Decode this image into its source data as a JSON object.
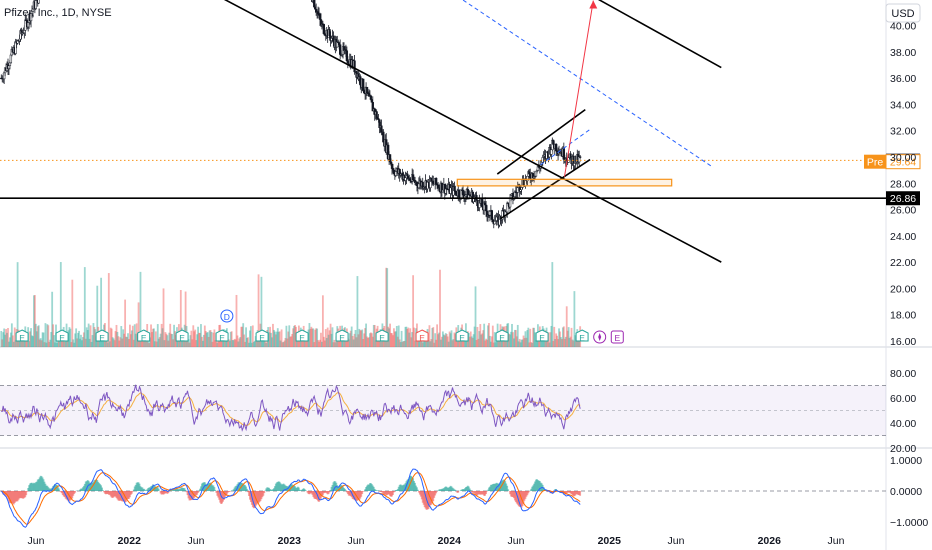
{
  "header": {
    "title": "Pfizer, Inc., 1D, NYSE",
    "currency": "USD"
  },
  "colors": {
    "up": "#26a69a",
    "down": "#ef5350",
    "candle": "#131722",
    "rsi": "#7e57c2",
    "rsi_ma": "#f5b041",
    "macd": "#2962ff",
    "signal": "#ff6d00",
    "accent": "#f7931a",
    "dashed_blue": "#2962ff",
    "arrow": "#f23645"
  },
  "chart_data": {
    "type": "line",
    "price_axis": {
      "min": 16,
      "max": 40,
      "ticks": [
        16,
        18,
        20,
        22,
        24,
        26,
        28,
        30,
        32,
        34,
        36,
        38,
        40
      ],
      "tick_labels": [
        "16.00",
        "18.00",
        "20.00",
        "22.00",
        "24.00",
        "26.00",
        "28.00",
        "30.00",
        "32.00",
        "34.00",
        "36.00",
        "38.00",
        "40.00"
      ]
    },
    "time_axis": {
      "labels": [
        "Jun",
        "2022",
        "Jun",
        "2023",
        "Jun",
        "2024",
        "Jun",
        "2025",
        "Jun",
        "2026",
        "Jun"
      ],
      "years": [
        2021.417,
        2022.0,
        2022.417,
        2023.0,
        2023.417,
        2024.0,
        2024.417,
        2025.0,
        2025.417,
        2026.0,
        2026.417
      ]
    },
    "price_series": {
      "name": "",
      "t": [
        2021.2,
        2021.35,
        2021.5,
        2021.7,
        2021.85,
        2022.0,
        2022.2,
        2022.45,
        2022.7,
        2022.95,
        2023.05,
        2023.2,
        2023.4,
        2023.55,
        2023.65,
        2023.8,
        2023.9,
        2024.0,
        2024.15,
        2024.3,
        2024.45,
        2024.55,
        2024.65,
        2024.75,
        2024.82
      ],
      "v": [
        36,
        40,
        44,
        50,
        58,
        55,
        52,
        50,
        45,
        50,
        46,
        40,
        37,
        33,
        29,
        28,
        28,
        27.5,
        27,
        25,
        28,
        29,
        31,
        29.8,
        29.74
      ]
    },
    "levels": [
      {
        "price": 29.74,
        "label": "29.74",
        "style": "dotted"
      },
      {
        "price": 29.64,
        "label": "29.64",
        "tag": "Pre"
      },
      {
        "price": 26.86,
        "label": "26.86",
        "style": "solid"
      }
    ],
    "trendlines": [
      {
        "style": "solid",
        "points": [
          [
            2021.35,
            50
          ],
          [
            2025.7,
            22.0
          ]
        ]
      },
      {
        "style": "solid",
        "points": [
          [
            2023.45,
            52.0
          ],
          [
            2025.7,
            36.8
          ]
        ]
      },
      {
        "style": "dashed",
        "points": [
          [
            2022.85,
            52.0
          ],
          [
            2025.65,
            29.2
          ]
        ]
      },
      {
        "style": "solid",
        "points": [
          [
            2024.3,
            28.7
          ],
          [
            2024.85,
            33.6
          ]
        ]
      },
      {
        "style": "solid",
        "points": [
          [
            2024.32,
            25.3
          ],
          [
            2024.88,
            29.8
          ]
        ]
      },
      {
        "style": "dashed",
        "points": [
          [
            2024.57,
            29.4
          ],
          [
            2024.88,
            32.1
          ]
        ]
      }
    ],
    "arrow": {
      "from": [
        2024.72,
        28.5
      ],
      "to": [
        2024.9,
        41.9
      ]
    },
    "zone": {
      "t0": 2024.05,
      "t1": 2025.39,
      "p_low": 27.8,
      "p_high": 28.3
    },
    "events": {
      "earnings": [
        2021.15,
        2021.33,
        2021.58,
        2021.83,
        2022.09,
        2022.33,
        2022.58,
        2022.83,
        2023.08,
        2023.33,
        2023.58,
        2023.83,
        2024.08,
        2024.33,
        2024.58,
        2024.83
      ],
      "earnings_highlight": [
        2023.83
      ],
      "upcoming_earnings": [
        2025.05
      ],
      "dividend": [
        2022.61
      ],
      "split": [
        2024.94
      ],
      "earnings_label": "E",
      "dividend_label": "D"
    },
    "rsi": {
      "ticks": [
        20,
        40,
        60,
        80
      ],
      "tick_labels": [
        "20.00",
        "40.00",
        "60.00",
        "80.00"
      ],
      "bands": [
        30,
        70
      ],
      "mid": 50
    },
    "macd": {
      "ticks": [
        -1,
        0,
        1
      ],
      "tick_labels": [
        "−1.0000",
        "0.0000",
        "1.0000"
      ]
    }
  }
}
